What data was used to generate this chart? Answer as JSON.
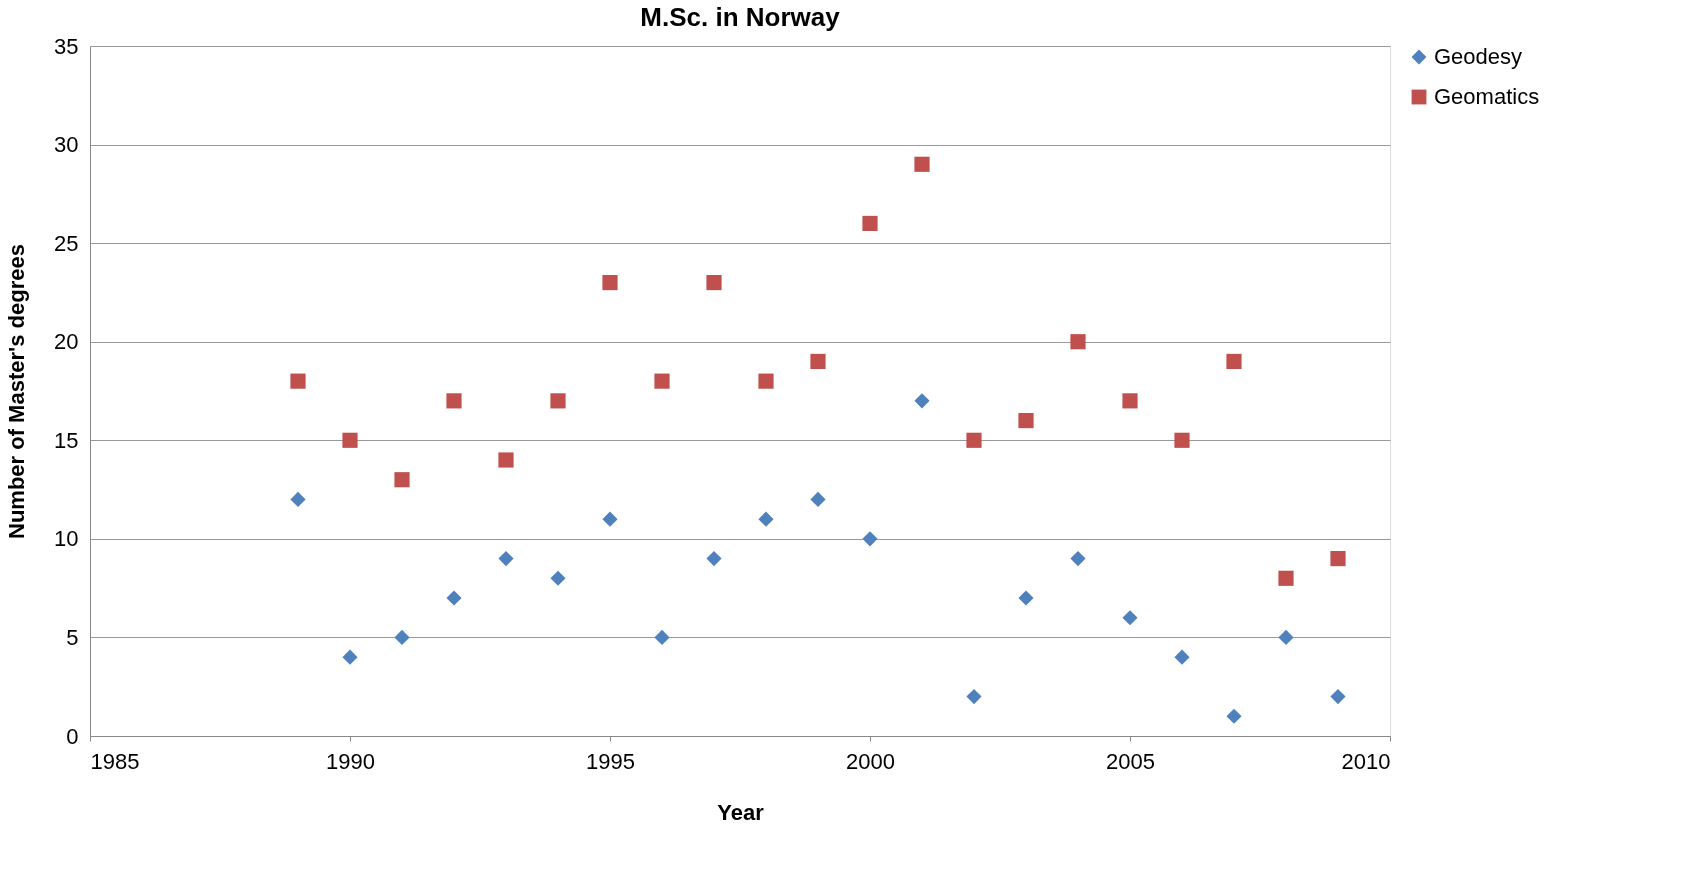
{
  "chart_data": {
    "type": "scatter",
    "title": "M.Sc. in Norway",
    "xlabel": "Year",
    "ylabel": "Number of Master's degrees",
    "x": [
      1989,
      1990,
      1991,
      1992,
      1993,
      1994,
      1995,
      1996,
      1997,
      1998,
      1999,
      2000,
      2001,
      2002,
      2003,
      2004,
      2005,
      2006,
      2007,
      2008,
      2009
    ],
    "series": [
      {
        "name": "Geodesy",
        "color": "#4f81bd",
        "marker": "diamond",
        "values": [
          12,
          4,
          5,
          7,
          9,
          8,
          11,
          5,
          9,
          11,
          12,
          10,
          17,
          2,
          7,
          9,
          6,
          4,
          1,
          5,
          2
        ]
      },
      {
        "name": "Geomatics",
        "color": "#c0504d",
        "marker": "square",
        "values": [
          18,
          15,
          13,
          17,
          14,
          17,
          23,
          18,
          23,
          18,
          19,
          26,
          29,
          15,
          16,
          20,
          17,
          15,
          19,
          8,
          9
        ]
      }
    ],
    "xlim": [
      1985,
      2010
    ],
    "xticks": [
      1985,
      1990,
      1995,
      2000,
      2005,
      2010
    ],
    "ylim": [
      0,
      35
    ],
    "yticks": [
      0,
      5,
      10,
      15,
      20,
      25,
      30,
      35
    ],
    "grid": "y",
    "legend": "right"
  }
}
